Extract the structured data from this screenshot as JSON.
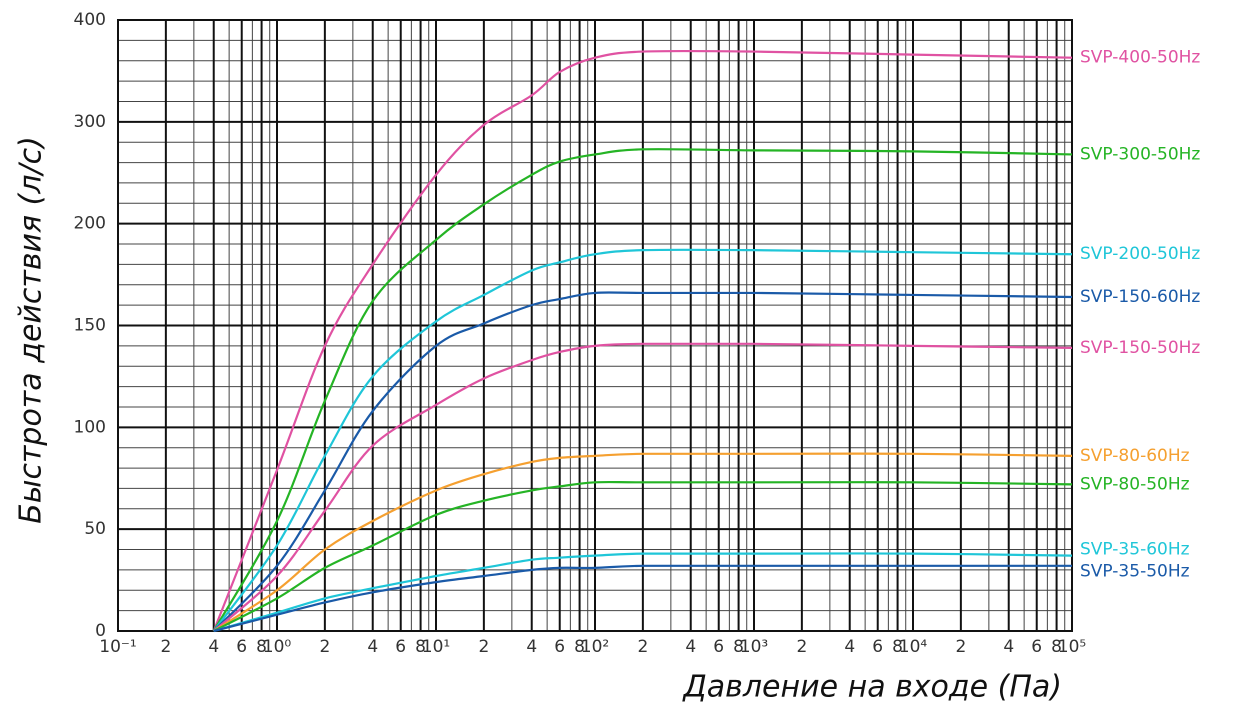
{
  "chart_data": {
    "type": "line",
    "x_label": "Давление на входе (Па)",
    "y_label": "Быстрота действия (л/с)",
    "xscale": "log",
    "grid": true,
    "xlim": [
      0.1,
      100000
    ],
    "ylim": [
      0,
      400
    ],
    "xticks": [
      {
        "value": 0.1,
        "label": "10⁻¹"
      },
      {
        "value": 0.2,
        "label": "2"
      },
      {
        "value": 0.4,
        "label": "4"
      },
      {
        "value": 0.6,
        "label": "6"
      },
      {
        "value": 0.8,
        "label": "8"
      },
      {
        "value": 1,
        "label": "10⁰"
      },
      {
        "value": 2,
        "label": "2"
      },
      {
        "value": 4,
        "label": "4"
      },
      {
        "value": 6,
        "label": "6"
      },
      {
        "value": 8,
        "label": "8"
      },
      {
        "value": 10,
        "label": "10¹"
      },
      {
        "value": 20,
        "label": "2"
      },
      {
        "value": 40,
        "label": "4"
      },
      {
        "value": 60,
        "label": "6"
      },
      {
        "value": 80,
        "label": "8"
      },
      {
        "value": 100,
        "label": "10²"
      },
      {
        "value": 200,
        "label": "2"
      },
      {
        "value": 400,
        "label": "4"
      },
      {
        "value": 600,
        "label": "6"
      },
      {
        "value": 800,
        "label": "8"
      },
      {
        "value": 1000,
        "label": "10³"
      },
      {
        "value": 2000,
        "label": "2"
      },
      {
        "value": 4000,
        "label": "4"
      },
      {
        "value": 6000,
        "label": "6"
      },
      {
        "value": 8000,
        "label": "8"
      },
      {
        "value": 10000,
        "label": "10⁴"
      },
      {
        "value": 20000,
        "label": "2"
      },
      {
        "value": 40000,
        "label": "4"
      },
      {
        "value": 60000,
        "label": "6"
      },
      {
        "value": 80000,
        "label": "8"
      },
      {
        "value": 100000,
        "label": "10⁵"
      }
    ],
    "yticks": [
      0,
      50,
      100,
      150,
      200,
      300,
      400
    ],
    "x": [
      0.4,
      1,
      2,
      4,
      10,
      20,
      40,
      60,
      100,
      200,
      1000,
      10000,
      100000
    ],
    "series": [
      {
        "name": "SVP-400-50Hz",
        "color": "#e052a2",
        "values": [
          0,
          79,
          140,
          180,
          248,
          297,
          326,
          349,
          363,
          369,
          369,
          366,
          363
        ]
      },
      {
        "name": "SVP-300-50Hz",
        "color": "#25b425",
        "values": [
          0,
          54,
          113,
          162,
          192,
          219,
          248,
          261,
          268,
          273,
          272,
          271,
          268
        ]
      },
      {
        "name": "SVP-200-50Hz",
        "color": "#1fc6d8",
        "values": [
          0,
          42,
          86,
          125,
          152,
          165,
          177,
          181,
          185,
          187,
          187,
          186,
          185
        ]
      },
      {
        "name": "SVP-150-60Hz",
        "color": "#1a5aa8",
        "values": [
          0,
          32,
          69,
          108,
          140,
          151,
          160,
          163,
          166,
          166,
          166,
          165,
          164
        ]
      },
      {
        "name": "SVP-150-50Hz",
        "color": "#e052a2",
        "values": [
          0,
          27,
          59,
          91,
          111,
          124,
          133,
          137,
          140,
          141,
          141,
          140,
          139
        ]
      },
      {
        "name": "SVP-80-60Hz",
        "color": "#f5a030",
        "values": [
          0,
          20,
          40,
          54,
          69,
          77,
          83,
          85,
          86,
          87,
          87,
          87,
          86
        ]
      },
      {
        "name": "SVP-80-50Hz",
        "color": "#25b425",
        "values": [
          0,
          16,
          31,
          42,
          57,
          64,
          69,
          71,
          73,
          73,
          73,
          73,
          72
        ]
      },
      {
        "name": "SVP-35-60Hz",
        "color": "#1fc6d8",
        "values": [
          0,
          9,
          16,
          21,
          27,
          31,
          35,
          36,
          37,
          38,
          38,
          38,
          37
        ]
      },
      {
        "name": "SVP-35-50Hz",
        "color": "#1a5aa8",
        "values": [
          0,
          8,
          14,
          19,
          24,
          27,
          30,
          31,
          31,
          32,
          32,
          32,
          32
        ]
      }
    ]
  }
}
